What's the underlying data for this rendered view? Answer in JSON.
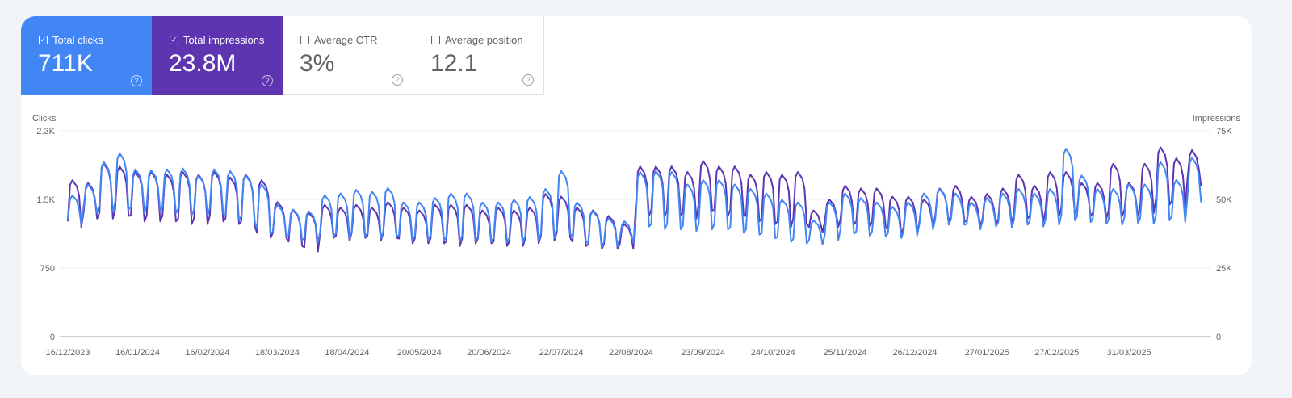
{
  "cards": [
    {
      "label": "Total clicks",
      "value": "711K",
      "checked": true,
      "color": "#4285f4"
    },
    {
      "label": "Total impressions",
      "value": "23.8M",
      "checked": true,
      "color": "#5e35b1"
    },
    {
      "label": "Average CTR",
      "value": "3%",
      "checked": false
    },
    {
      "label": "Average position",
      "value": "12.1",
      "checked": false
    }
  ],
  "chart_data": {
    "type": "line",
    "left_axis_label": "Clicks",
    "right_axis_label": "Impressions",
    "left_ticks": [
      "0",
      "750",
      "1.5K",
      "2.3K"
    ],
    "left_ylim": [
      0,
      2300
    ],
    "right_ticks": [
      "0",
      "25K",
      "50K",
      "75K"
    ],
    "right_ylim": [
      0,
      75000
    ],
    "x_labels": [
      "16/12/2023",
      "16/01/2024",
      "16/02/2024",
      "18/03/2024",
      "18/04/2024",
      "20/05/2024",
      "20/06/2024",
      "22/07/2024",
      "22/08/2024",
      "23/09/2024",
      "24/10/2024",
      "25/11/2024",
      "26/12/2024",
      "27/01/2025",
      "27/02/2025",
      "31/03/2025"
    ],
    "grid": true,
    "series": [
      {
        "name": "Clicks",
        "axis": "left",
        "color": "#4285f4",
        "weekly_high": [
          1580,
          1700,
          1950,
          2050,
          1870,
          1860,
          1870,
          1880,
          1800,
          1870,
          1850,
          1800,
          1700,
          1470,
          1420,
          1400,
          1580,
          1600,
          1640,
          1620,
          1660,
          1500,
          1500,
          1550,
          1600,
          1600,
          1500,
          1500,
          1530,
          1560,
          1650,
          1850,
          1500,
          1400,
          1320,
          1290,
          1840,
          1850,
          1840,
          1700,
          1750,
          1750,
          1700,
          1650,
          1600,
          1530,
          1500,
          1300,
          1500,
          1600,
          1550,
          1500,
          1450,
          1500,
          1600,
          1650,
          1600,
          1500,
          1550,
          1600,
          1650,
          1600,
          1650,
          2100,
          1800,
          1650,
          1650,
          1700,
          1700,
          1950,
          1750,
          2000
        ],
        "weekly_low": [
          1250,
          1380,
          1400,
          1420,
          1380,
          1400,
          1380,
          1360,
          1350,
          1370,
          1300,
          1280,
          1150,
          1120,
          1080,
          1050,
          1120,
          1100,
          1120,
          1100,
          1120,
          1080,
          1070,
          1080,
          1060,
          1070,
          1060,
          1050,
          1050,
          1070,
          1100,
          1150,
          1060,
          1000,
          1010,
          1050,
          1230,
          1200,
          1200,
          1180,
          1200,
          1200,
          1160,
          1140,
          1100,
          1060,
          1040,
          1030,
          1080,
          1150,
          1120,
          1120,
          1100,
          1130,
          1200,
          1250,
          1250,
          1200,
          1230,
          1220,
          1250,
          1230,
          1250,
          1300,
          1280,
          1260,
          1250,
          1270,
          1260,
          1300,
          1280,
          1500
        ]
      },
      {
        "name": "Impressions",
        "axis": "right",
        "color": "#5e35b1",
        "weekly_high": [
          57000,
          56000,
          63000,
          62000,
          60000,
          60000,
          59000,
          60000,
          59000,
          60000,
          58000,
          59000,
          57000,
          49000,
          46000,
          45000,
          48000,
          47000,
          48000,
          47000,
          49000,
          47000,
          46000,
          48000,
          48000,
          48000,
          46000,
          47000,
          46000,
          47000,
          52000,
          51000,
          47000,
          46000,
          44000,
          41000,
          62000,
          62000,
          62000,
          60000,
          64000,
          62000,
          62000,
          59000,
          60000,
          59000,
          60000,
          46000,
          50000,
          55000,
          54000,
          54000,
          51000,
          51000,
          50000,
          54000,
          55000,
          51000,
          52000,
          54000,
          59000,
          55000,
          60000,
          60000,
          56000,
          56000,
          63000,
          56000,
          63000,
          69000,
          65000,
          68000
        ],
        "weekly_low": [
          40000,
          43000,
          43000,
          44000,
          42000,
          42000,
          42000,
          41000,
          41000,
          42000,
          41000,
          40000,
          36000,
          36000,
          33000,
          31000,
          36000,
          35000,
          36000,
          35000,
          36000,
          34000,
          34000,
          34000,
          33000,
          34000,
          34000,
          33000,
          33000,
          34000,
          35000,
          36000,
          33000,
          32000,
          32000,
          32000,
          44000,
          44000,
          44000,
          43000,
          46000,
          44000,
          44000,
          42000,
          41000,
          40000,
          41000,
          38000,
          40000,
          41000,
          40000,
          40000,
          37000,
          38000,
          40000,
          42000,
          42000,
          40000,
          41000,
          41000,
          43000,
          42000,
          44000,
          45000,
          44000,
          43000,
          44000,
          44000,
          45000,
          48000,
          47000,
          55000
        ]
      }
    ]
  }
}
